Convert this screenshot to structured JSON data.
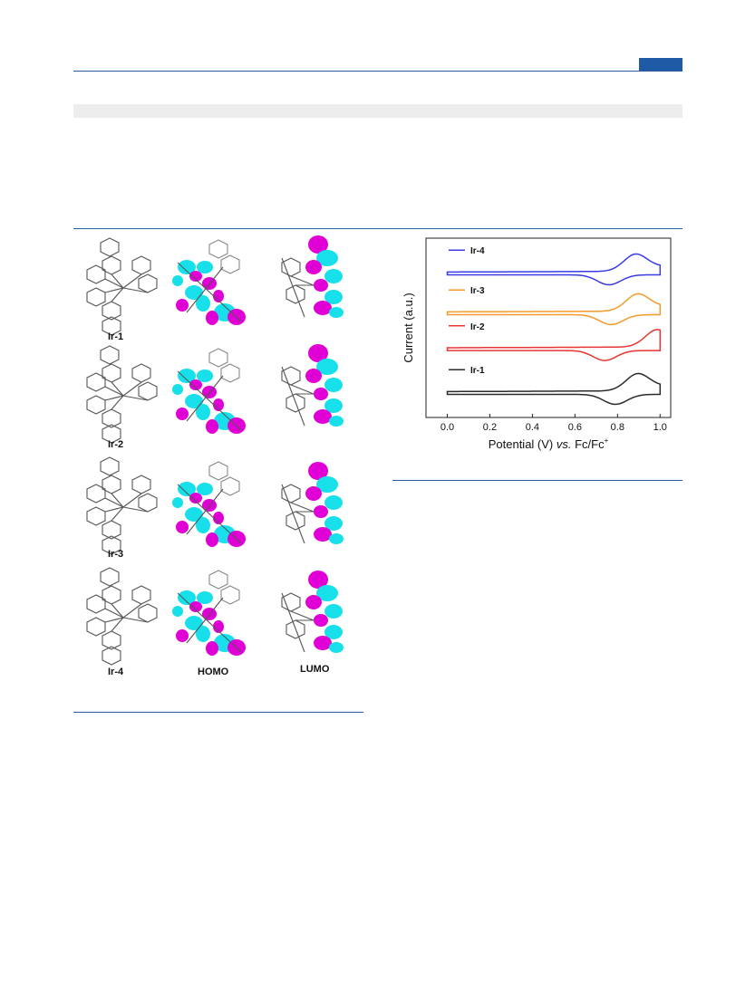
{
  "figure_left": {
    "compounds": [
      "Ir-1",
      "Ir-2",
      "Ir-3",
      "Ir-4"
    ],
    "column_labels": [
      "HOMO",
      "LUMO"
    ]
  },
  "chart_data": {
    "type": "line",
    "xlabel_parts": [
      "Potential (V) ",
      "vs.",
      " Fc/Fc",
      "+"
    ],
    "ylabel": "Current (a.u.)",
    "xlim": [
      -0.1,
      1.05
    ],
    "xticks": [
      "0.0",
      "0.2",
      "0.4",
      "0.6",
      "0.8",
      "1.0"
    ],
    "xtick_values": [
      0.0,
      0.2,
      0.4,
      0.6,
      0.8,
      1.0
    ],
    "legend": "inline-left",
    "series": [
      {
        "name": "Ir-4",
        "color": "#3a3ae8",
        "offset": 3.0,
        "ox_peak": 0.88,
        "red_peak": 0.76
      },
      {
        "name": "Ir-3",
        "color": "#f59a2a",
        "offset": 2.0,
        "ox_peak": 0.89,
        "red_peak": 0.77
      },
      {
        "name": "Ir-2",
        "color": "#e83434",
        "offset": 1.1,
        "ox_peak": 0.98,
        "red_peak": 0.74
      },
      {
        "name": "Ir-1",
        "color": "#2a2a2a",
        "offset": 0.0,
        "ox_peak": 0.89,
        "red_peak": 0.79
      }
    ]
  }
}
